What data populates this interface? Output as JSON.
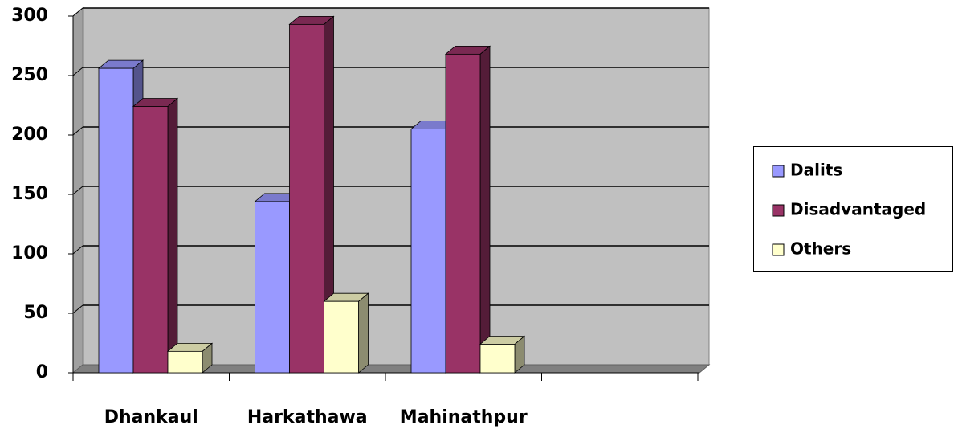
{
  "chart_data": {
    "type": "bar3d",
    "categories": [
      "Dhankaul",
      "Harkathawa",
      "Mahinathpur",
      null
    ],
    "series": [
      {
        "name": "Dalits",
        "color": "#9999ff",
        "values": [
          256,
          144,
          205,
          null
        ]
      },
      {
        "name": "Disadvantaged",
        "color": "#993366",
        "values": [
          224,
          293,
          268,
          null
        ]
      },
      {
        "name": "Others",
        "color": "#ffffcc",
        "values": [
          18,
          60,
          24,
          null
        ]
      }
    ],
    "ylim": [
      0,
      300
    ],
    "yticks": [
      0,
      50,
      100,
      150,
      200,
      250,
      300
    ],
    "grid": true,
    "legend": "right"
  }
}
